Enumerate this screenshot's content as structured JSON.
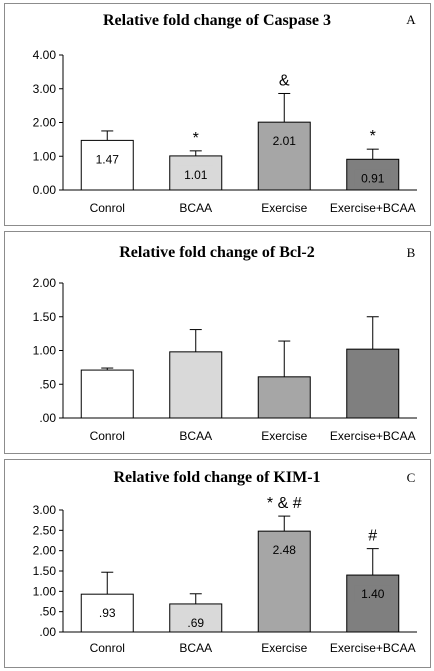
{
  "chart_data": [
    {
      "type": "bar",
      "panel_label": "A",
      "title": "Relative fold change of Caspase 3",
      "categories": [
        "Conrol",
        "BCAA",
        "Exercise",
        "Exercise+BCAA"
      ],
      "values": [
        1.47,
        1.01,
        2.01,
        0.91
      ],
      "errors": [
        0.28,
        0.15,
        0.85,
        0.3
      ],
      "data_labels": [
        "1.47",
        "1.01",
        "2.01",
        "0.91"
      ],
      "significance": [
        "",
        "*",
        "&",
        "*"
      ],
      "bar_colors": [
        "#ffffff",
        "#d9d9d9",
        "#a6a6a6",
        "#7f7f7f"
      ],
      "yticks": [
        "0.00",
        "1.00",
        "2.00",
        "3.00",
        "4.00"
      ],
      "ylim": [
        0,
        4
      ],
      "grid": false,
      "legend": "none"
    },
    {
      "type": "bar",
      "panel_label": "B",
      "title": "Relative fold change of Bcl-2",
      "categories": [
        "Conrol",
        "BCAA",
        "Exercise",
        "Exercise+BCAA"
      ],
      "values": [
        0.71,
        0.98,
        0.61,
        1.02
      ],
      "errors": [
        0.03,
        0.33,
        0.53,
        0.48
      ],
      "data_labels": [
        "",
        "",
        "",
        ""
      ],
      "significance": [
        "",
        "",
        "",
        ""
      ],
      "bar_colors": [
        "#ffffff",
        "#d9d9d9",
        "#a6a6a6",
        "#7f7f7f"
      ],
      "yticks": [
        ".00",
        ".50",
        "1.00",
        "1.50",
        "2.00"
      ],
      "ylim": [
        0,
        2
      ],
      "grid": false,
      "legend": "none"
    },
    {
      "type": "bar",
      "panel_label": "C",
      "title": "Relative fold change of KIM-1",
      "categories": [
        "Conrol",
        "BCAA",
        "Exercise",
        "Exercise+BCAA"
      ],
      "values": [
        0.93,
        0.69,
        2.48,
        1.4
      ],
      "errors": [
        0.54,
        0.25,
        0.37,
        0.65
      ],
      "data_labels": [
        ".93",
        ".69",
        "2.48",
        "1.40"
      ],
      "significance": [
        "",
        "",
        "* & #",
        "#"
      ],
      "bar_colors": [
        "#ffffff",
        "#d9d9d9",
        "#a6a6a6",
        "#7f7f7f"
      ],
      "yticks": [
        ".00",
        ".50",
        "1.00",
        "1.50",
        "2.00",
        "2.50",
        "3.00"
      ],
      "ylim": [
        0,
        3
      ],
      "grid": false,
      "legend": "none"
    }
  ]
}
